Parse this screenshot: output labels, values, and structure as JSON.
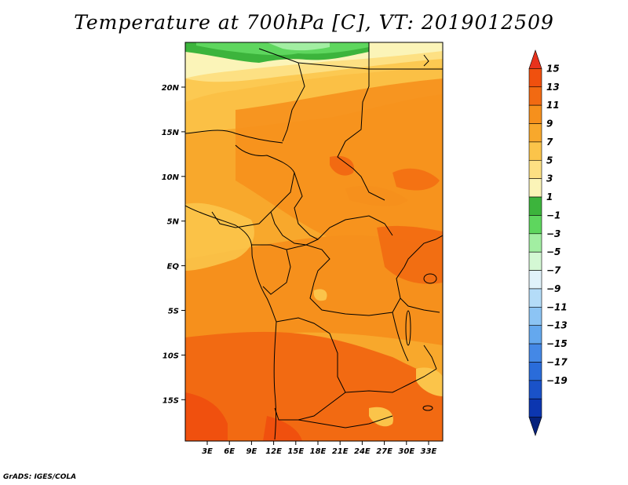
{
  "title": "Temperature at 700hPa [C], VT: 2019012509",
  "credit": "GrADS: IGES/COLA",
  "map": {
    "lat_ticks": [
      "20N",
      "15N",
      "10N",
      "5N",
      "EQ",
      "5S",
      "10S",
      "15S"
    ],
    "lon_ticks": [
      "3E",
      "6E",
      "9E",
      "12E",
      "15E",
      "18E",
      "21E",
      "24E",
      "27E",
      "30E",
      "33E"
    ],
    "lon_range": [
      0,
      35
    ],
    "lat_range": [
      -20,
      25
    ]
  },
  "colorbar": {
    "labels": [
      "15",
      "13",
      "11",
      "9",
      "7",
      "5",
      "3",
      "1",
      "−1",
      "−3",
      "−5",
      "−7",
      "−9",
      "−11",
      "−13",
      "−15",
      "−17",
      "−19"
    ],
    "colors": [
      "#e8321c",
      "#f0500e",
      "#f26a12",
      "#f6901c",
      "#f8a82c",
      "#fbc44a",
      "#fde083",
      "#fbf4b8",
      "#3cb43c",
      "#5ed65e",
      "#a2eea2",
      "#d4f8d4",
      "#e0f2fa",
      "#b4dcf8",
      "#8cc4f4",
      "#64a8ee",
      "#4488e6",
      "#2a6cda",
      "#1a52c8",
      "#0c36b0",
      "#06227c"
    ]
  },
  "field_colors": {
    "warm_orange": "#f6901c",
    "orange": "#f8a82c",
    "light_orange": "#fbc44a",
    "pale_yellow": "#fde083",
    "cream": "#fbf4b8",
    "green": "#3cb43c",
    "red_orange": "#f26a12",
    "deep_red": "#f0500e"
  }
}
